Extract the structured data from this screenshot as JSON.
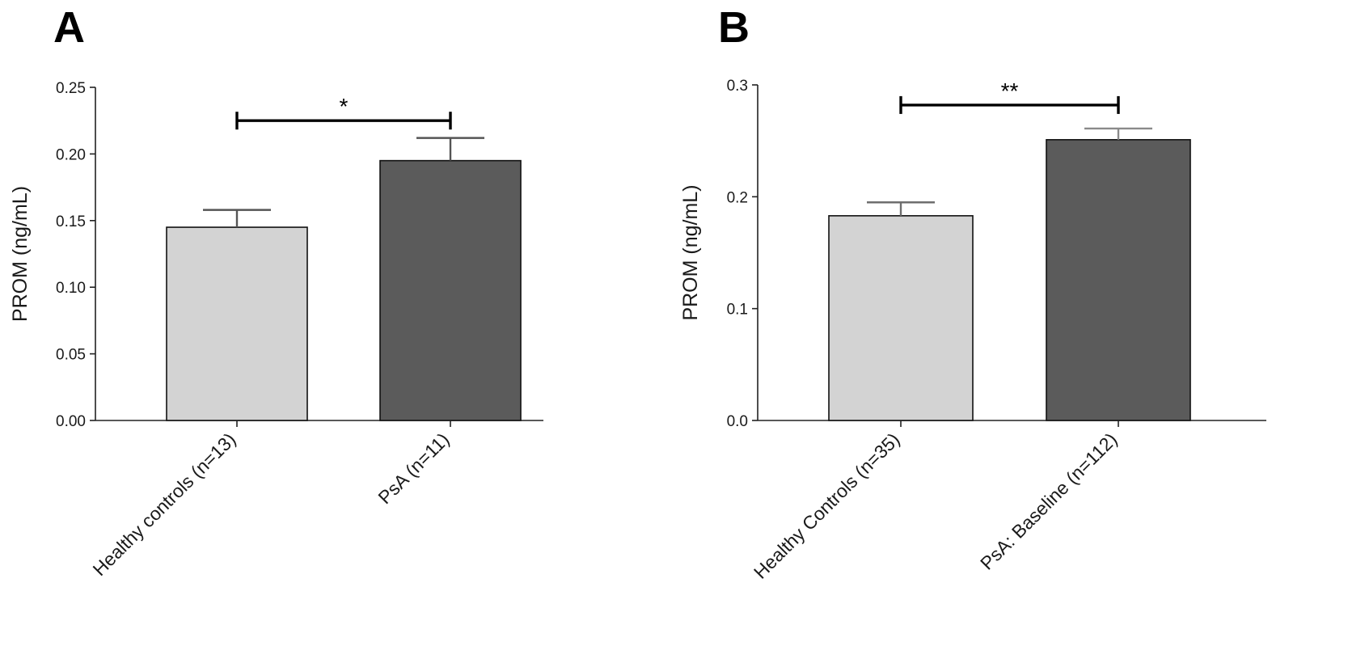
{
  "chart_data": [
    {
      "type": "bar",
      "panel_label": "A",
      "title": "",
      "xlabel": "",
      "ylabel": "PROM (ng/mL)",
      "ylim": [
        0,
        0.25
      ],
      "yticks": [
        0.0,
        0.05,
        0.1,
        0.15,
        0.2,
        0.25
      ],
      "ytick_labels": [
        "0.00",
        "0.05",
        "0.10",
        "0.15",
        "0.20",
        "0.25"
      ],
      "categories": [
        "Healthy controls (n=13)",
        "PsA (n=11)"
      ],
      "values": [
        0.145,
        0.195
      ],
      "errors": [
        0.013,
        0.017
      ],
      "bar_colors": [
        "#d3d3d3",
        "#5b5b5b"
      ],
      "error_colors": [
        "#555555",
        "#555555"
      ],
      "significance": {
        "label": "*",
        "from": 0,
        "to": 1,
        "y": 0.225
      },
      "grid": false,
      "legend": "none"
    },
    {
      "type": "bar",
      "panel_label": "B",
      "title": "",
      "xlabel": "",
      "ylabel": "PROM (ng/mL)",
      "ylim": [
        0,
        0.3
      ],
      "yticks": [
        0.0,
        0.1,
        0.2,
        0.3
      ],
      "ytick_labels": [
        "0.0",
        "0.1",
        "0.2",
        "0.3"
      ],
      "categories": [
        "Healthy Controls (n=35)",
        "PsA: Baseline (n=112)"
      ],
      "values": [
        0.183,
        0.251
      ],
      "errors": [
        0.012,
        0.01
      ],
      "bar_colors": [
        "#d3d3d3",
        "#5b5b5b"
      ],
      "error_colors": [
        "#6e6e6e",
        "#8a8a8a"
      ],
      "significance": {
        "label": "**",
        "from": 0,
        "to": 1,
        "y": 0.282
      },
      "grid": false,
      "legend": "none"
    }
  ]
}
